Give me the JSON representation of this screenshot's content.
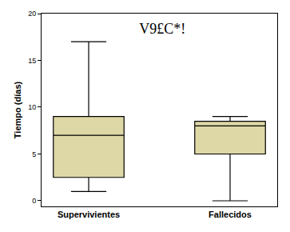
{
  "chart_data": {
    "type": "box",
    "title": "V9£C*!",
    "y_label": "Tiempo (días)",
    "categories": [
      "Supervivientes",
      "Fallecidos"
    ],
    "min": [
      1,
      0
    ],
    "q1": [
      2.5,
      5
    ],
    "median": [
      7,
      8
    ],
    "q3": [
      9,
      8.5
    ],
    "max": [
      17,
      9
    ],
    "color": "#ddd8a6",
    "ylim": [
      -0.6,
      20
    ],
    "yticks": [
      0,
      5,
      10,
      15,
      20
    ],
    "grid": false
  }
}
